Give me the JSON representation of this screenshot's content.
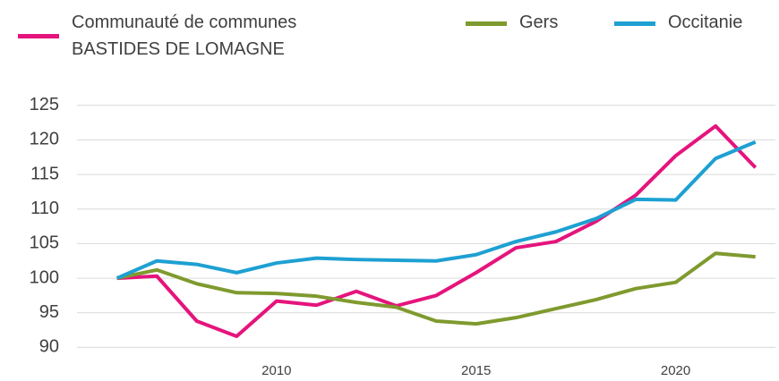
{
  "chart_data": {
    "type": "line",
    "x": [
      2006,
      2007,
      2008,
      2009,
      2010,
      2011,
      2012,
      2013,
      2014,
      2015,
      2016,
      2017,
      2018,
      2019,
      2020,
      2021,
      2022
    ],
    "series": [
      {
        "name": "Communauté de communes BASTIDES DE LOMAGNE",
        "color": "#e5147c",
        "values": [
          100,
          100.3,
          93.8,
          91.6,
          96.7,
          96.1,
          98.1,
          96,
          97.5,
          100.8,
          104.4,
          105.3,
          108.2,
          112,
          117.7,
          122,
          116
        ]
      },
      {
        "name": "Gers",
        "color": "#7f9a2e",
        "values": [
          100,
          101.2,
          99.2,
          97.9,
          97.8,
          97.4,
          96.5,
          95.8,
          93.8,
          93.4,
          94.3,
          95.6,
          96.9,
          98.5,
          99.4,
          103.6,
          103.1
        ]
      },
      {
        "name": "Occitanie",
        "color": "#1ea0d2",
        "values": [
          100,
          102.5,
          102,
          100.8,
          102.2,
          102.9,
          102.7,
          102.6,
          102.5,
          103.4,
          105.3,
          106.7,
          108.6,
          111.4,
          111.3,
          117.3,
          119.7
        ]
      }
    ],
    "xlim": [
      2005,
      2022.5
    ],
    "xticks": [
      2010,
      2015,
      2020
    ],
    "ylim": [
      88.5,
      126
    ],
    "yticks": [
      90,
      95,
      100,
      105,
      110,
      115,
      120,
      125
    ],
    "grid": true,
    "legend": "top"
  }
}
